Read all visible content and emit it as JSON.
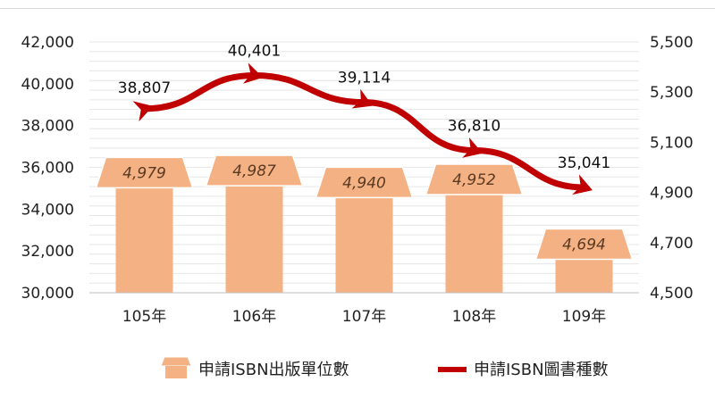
{
  "chart_data": {
    "type": "bar",
    "categories": [
      "105年",
      "106年",
      "107年",
      "108年",
      "109年"
    ],
    "series": [
      {
        "name": "申請ISBN出版單位數",
        "axis": "right",
        "values": [
          4979,
          4987,
          4940,
          4952,
          4694
        ],
        "value_labels": [
          "4,979",
          "4,987",
          "4,940",
          "4,952",
          "4,694"
        ],
        "color": "#f4b183"
      },
      {
        "name": "申請ISBN圖書種數",
        "axis": "left",
        "type": "line",
        "values": [
          38807,
          40401,
          39114,
          36810,
          35041
        ],
        "value_labels": [
          "38,807",
          "40,401",
          "39,114",
          "36,810",
          "35,041"
        ],
        "color": "#c00000"
      }
    ],
    "left_axis": {
      "ylim": [
        30000,
        42000
      ],
      "ticks": [
        "30,000",
        "32,000",
        "34,000",
        "36,000",
        "38,000",
        "40,000",
        "42,000"
      ]
    },
    "right_axis": {
      "ylim": [
        4500,
        5500
      ],
      "ticks": [
        "4,500",
        "4,700",
        "4,900",
        "5,100",
        "5,300",
        "5,500"
      ]
    },
    "grid": true,
    "legend_position": "bottom"
  }
}
